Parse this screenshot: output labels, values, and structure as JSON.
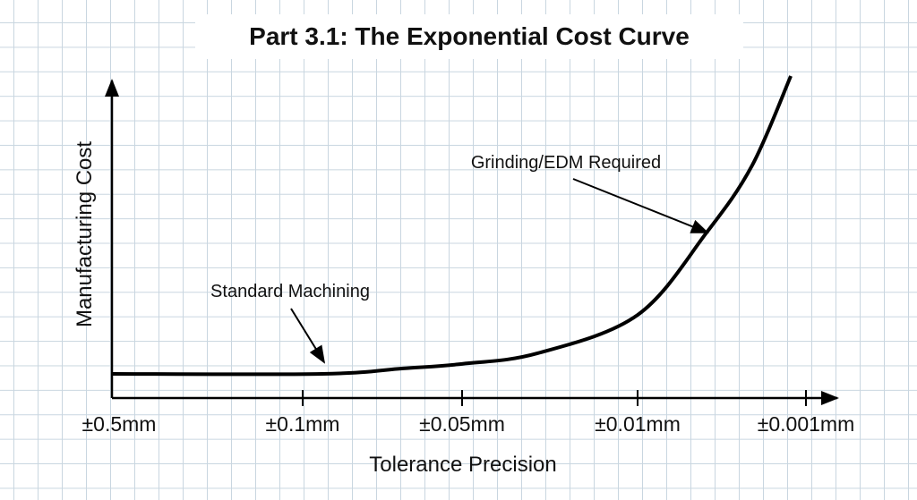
{
  "chart_data": {
    "type": "line",
    "title": "Part 3.1: The Exponential Cost Curve",
    "xlabel": "Tolerance Precision",
    "ylabel": "Manufacturing Cost",
    "x_tick_labels": [
      "±0.5mm",
      "±0.1mm",
      "±0.05mm",
      "±0.01mm",
      "±0.001mm"
    ],
    "y_scale": "unlabeled relative cost",
    "ylim": [
      0,
      100
    ],
    "grid": true,
    "series": [
      {
        "x_position": [
          0,
          1.12,
          1.63,
          2.0,
          2.43,
          3.0,
          3.41,
          3.68,
          3.91
        ],
        "values": [
          7.5,
          7.5,
          9.2,
          10.6,
          13.9,
          25.8,
          51.4,
          72.2,
          100
        ]
      }
    ],
    "annotations": [
      {
        "text": "Standard Machining",
        "points_to_x": 1.12
      },
      {
        "text": "Grinding/EDM Required",
        "points_to_x": 3.41
      }
    ],
    "colors": {
      "line": "#000000",
      "grid": "#c9d6e0"
    }
  }
}
